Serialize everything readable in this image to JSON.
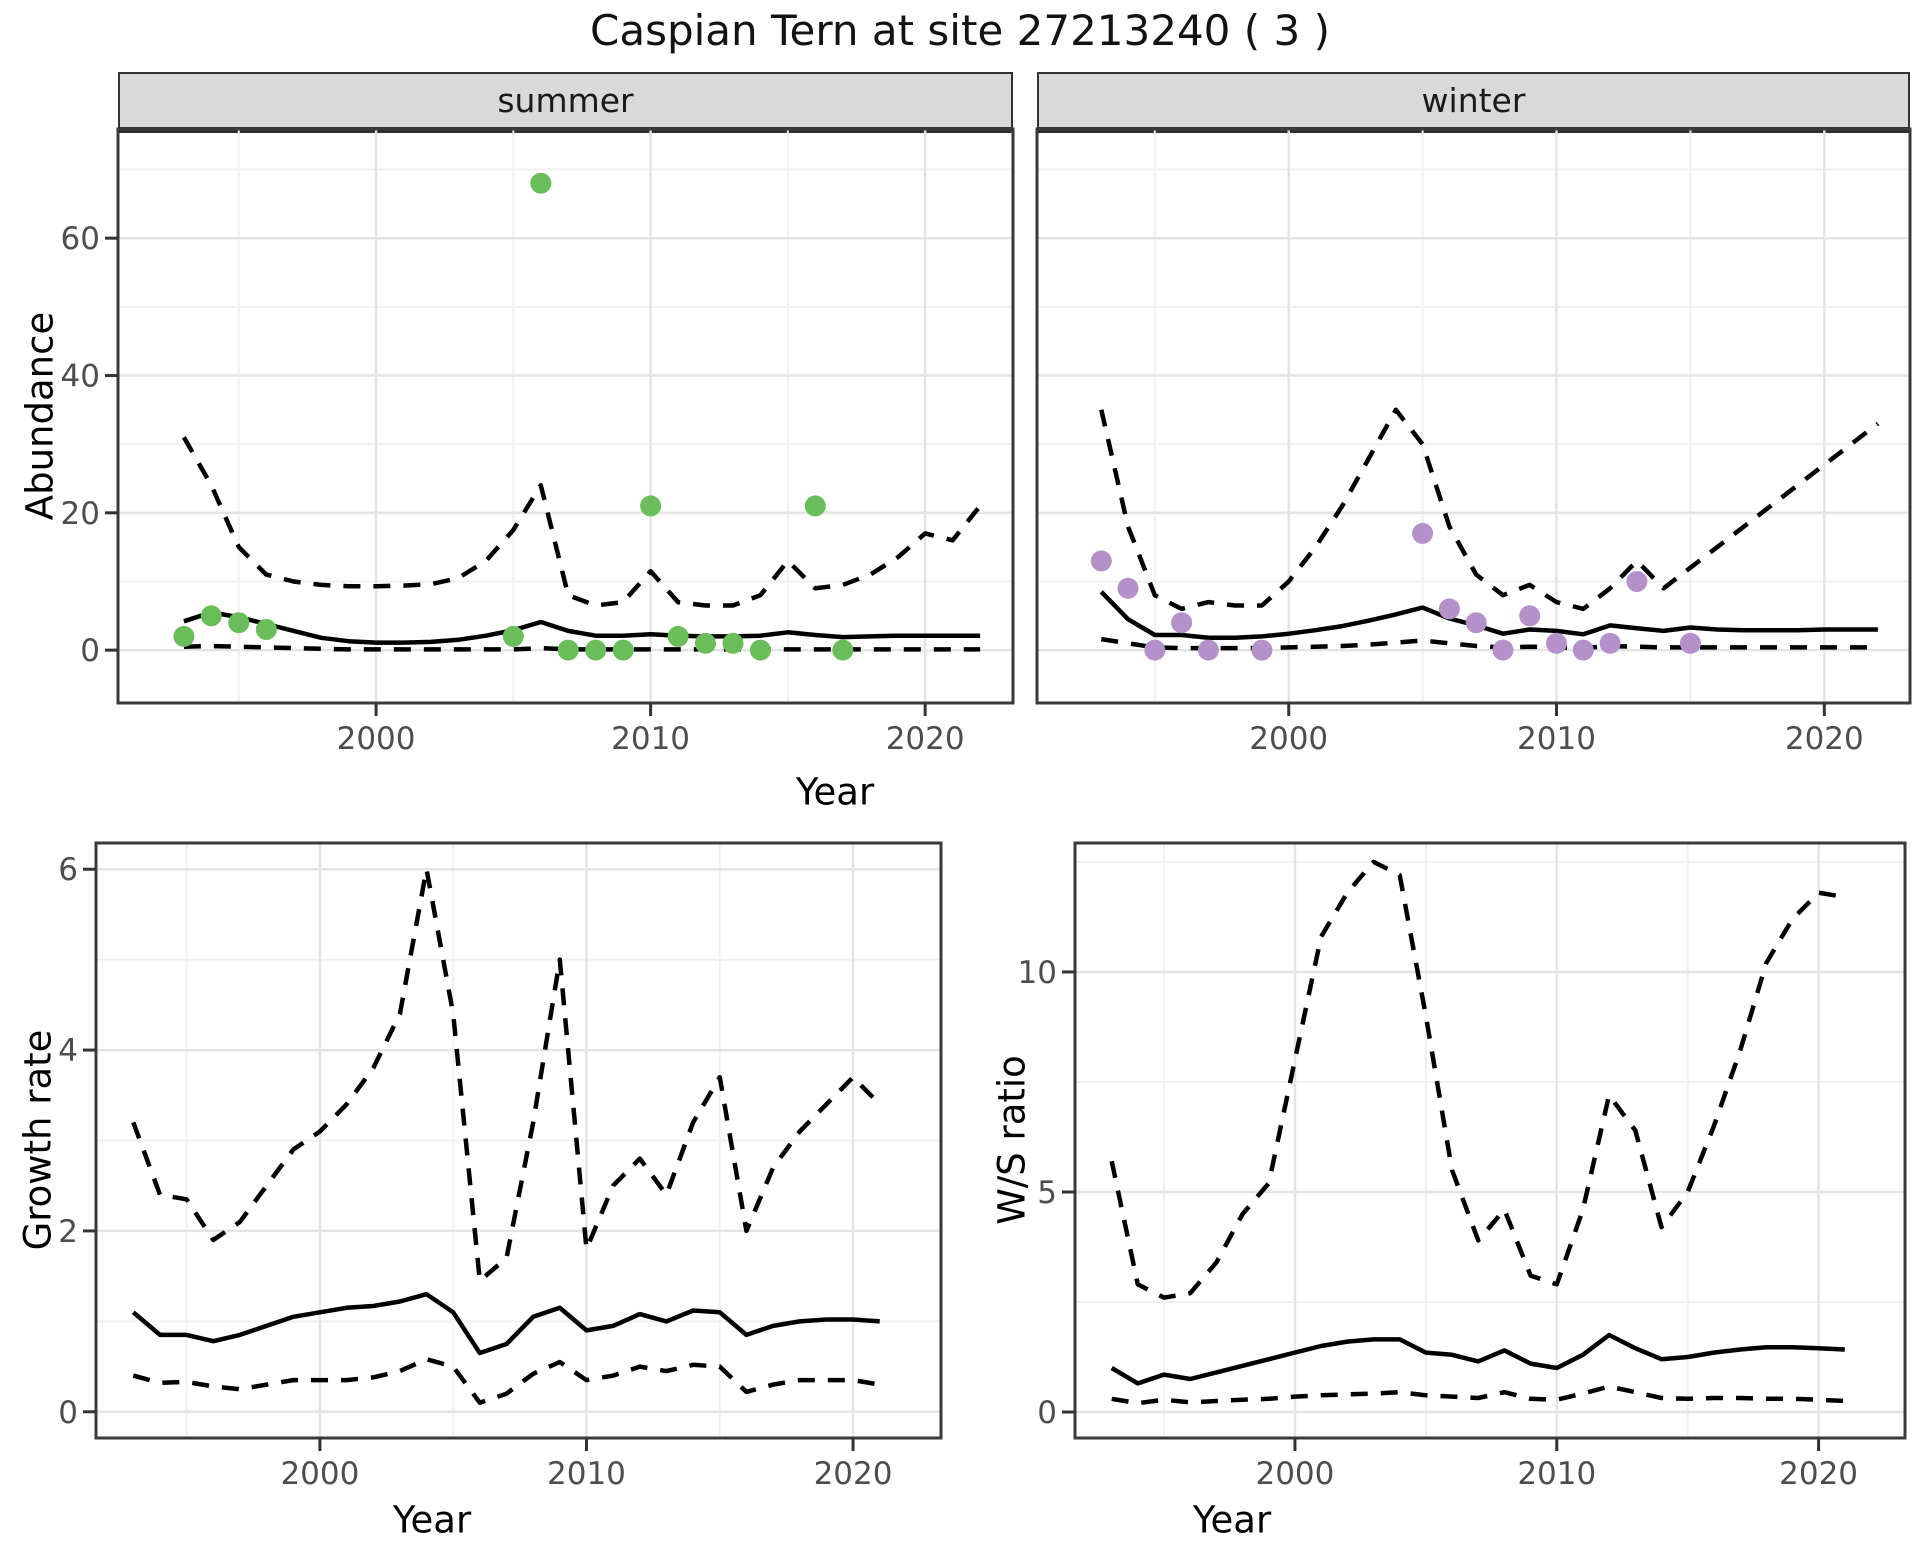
{
  "title": "Caspian Tern at site 27213240 ( 3 )",
  "colors": {
    "summer_point": "#6abd5a",
    "winter_point": "#b491c8",
    "line": "#000000",
    "strip_bg": "#d9d9d9",
    "panel_border": "#3a3a3a",
    "grid_major": "#e4e4e4",
    "grid_minor": "#f0f0f0",
    "tick_text": "#4d4d4d"
  },
  "chart_data": [
    {
      "id": "abundance_summer",
      "type": "line",
      "facet_label": "summer",
      "xlabel": "Year",
      "ylabel": "Abundance",
      "xlim": [
        1990.6,
        2023.2
      ],
      "ylim": [
        -7.7,
        75.9
      ],
      "xticks": [
        2000,
        2010,
        2020
      ],
      "yticks": [
        0,
        20,
        40,
        60
      ],
      "xminor": [
        1995,
        2005,
        2015
      ],
      "yminor": [
        10,
        30,
        50,
        70
      ],
      "grid": true,
      "show_y_axis": true,
      "x": [
        1993,
        1994,
        1995,
        1996,
        1997,
        1998,
        1999,
        2000,
        2001,
        2002,
        2003,
        2004,
        2005,
        2006,
        2007,
        2008,
        2009,
        2010,
        2011,
        2012,
        2013,
        2014,
        2015,
        2016,
        2017,
        2018,
        2019,
        2020,
        2021,
        2022
      ],
      "series": [
        {
          "name": "upper_ci",
          "style": "dashed",
          "values": [
            31,
            24,
            15,
            11,
            10,
            9.5,
            9.3,
            9.3,
            9.4,
            9.6,
            10.5,
            13,
            17.5,
            24,
            8,
            6.5,
            7,
            11.5,
            7,
            6.5,
            6.5,
            8,
            13,
            9,
            9.5,
            11,
            13.5,
            17,
            16,
            21
          ]
        },
        {
          "name": "median",
          "style": "solid",
          "values": [
            4.2,
            5.5,
            4.8,
            3.8,
            2.8,
            1.8,
            1.3,
            1.1,
            1.1,
            1.2,
            1.5,
            2.1,
            2.9,
            4.1,
            2.8,
            2.1,
            2.1,
            2.3,
            2.1,
            2,
            2,
            2.1,
            2.6,
            2.2,
            1.9,
            2,
            2.1,
            2.1,
            2.1,
            2.1
          ]
        },
        {
          "name": "lower_ci",
          "style": "dashed",
          "values": [
            0.5,
            0.6,
            0.5,
            0.4,
            0.3,
            0.2,
            0.1,
            0.1,
            0.1,
            0.1,
            0.1,
            0.1,
            0.1,
            0.3,
            0.1,
            0.1,
            0.1,
            0.1,
            0.1,
            0.1,
            0.1,
            0.1,
            0.1,
            0.1,
            0.1,
            0.1,
            0.1,
            0.1,
            0.1,
            0.1
          ]
        }
      ],
      "points": {
        "name": "observed_summer",
        "color": "#6abd5a",
        "data": [
          [
            1993,
            2
          ],
          [
            1994,
            5
          ],
          [
            1995,
            4
          ],
          [
            1996,
            3
          ],
          [
            2005,
            2
          ],
          [
            2006,
            68
          ],
          [
            2007,
            0
          ],
          [
            2008,
            0
          ],
          [
            2009,
            0
          ],
          [
            2010,
            21
          ],
          [
            2011,
            2
          ],
          [
            2012,
            1
          ],
          [
            2013,
            1
          ],
          [
            2014,
            0
          ],
          [
            2016,
            21
          ],
          [
            2017,
            0
          ]
        ]
      }
    },
    {
      "id": "abundance_winter",
      "type": "line",
      "facet_label": "winter",
      "xlabel": "Year",
      "ylabel": "Abundance",
      "xlim": [
        1990.6,
        2023.2
      ],
      "ylim": [
        -7.7,
        75.9
      ],
      "xticks": [
        2000,
        2010,
        2020
      ],
      "yticks": [
        0,
        20,
        40,
        60
      ],
      "xminor": [
        1995,
        2005,
        2015
      ],
      "yminor": [
        10,
        30,
        50,
        70
      ],
      "grid": true,
      "show_y_axis": false,
      "x": [
        1993,
        1994,
        1995,
        1996,
        1997,
        1998,
        1999,
        2000,
        2001,
        2002,
        2003,
        2004,
        2005,
        2006,
        2007,
        2008,
        2009,
        2010,
        2011,
        2012,
        2013,
        2014,
        2015,
        2016,
        2017,
        2018,
        2019,
        2020,
        2021,
        2022
      ],
      "series": [
        {
          "name": "upper_ci",
          "style": "dashed",
          "values": [
            35,
            18,
            8,
            6,
            7,
            6.5,
            6.5,
            10,
            15,
            21,
            28,
            35,
            30,
            18,
            11,
            8,
            9.5,
            7,
            6,
            9,
            13,
            9,
            12,
            15,
            18,
            21,
            24,
            27,
            30,
            33
          ]
        },
        {
          "name": "median",
          "style": "solid",
          "values": [
            8.5,
            4.5,
            2.2,
            2.2,
            1.8,
            1.8,
            2,
            2.4,
            2.9,
            3.5,
            4.3,
            5.2,
            6.2,
            4.6,
            3.6,
            2.4,
            3,
            2.8,
            2.3,
            3.6,
            3.2,
            2.8,
            3.3,
            3,
            2.9,
            2.9,
            2.9,
            3,
            3,
            3
          ]
        },
        {
          "name": "lower_ci",
          "style": "dashed",
          "values": [
            1.6,
            1,
            0.4,
            0.3,
            0.3,
            0.3,
            0.3,
            0.4,
            0.5,
            0.6,
            0.8,
            1.1,
            1.4,
            1,
            0.6,
            0.4,
            0.5,
            0.4,
            0.3,
            0.6,
            0.5,
            0.4,
            0.4,
            0.4,
            0.4,
            0.4,
            0.4,
            0.4,
            0.4,
            0.4
          ]
        }
      ],
      "points": {
        "name": "observed_winter",
        "color": "#b491c8",
        "data": [
          [
            1993,
            13
          ],
          [
            1994,
            9
          ],
          [
            1995,
            0
          ],
          [
            1996,
            4
          ],
          [
            1997,
            0
          ],
          [
            1999,
            0
          ],
          [
            2005,
            17
          ],
          [
            2006,
            6
          ],
          [
            2007,
            4
          ],
          [
            2008,
            0
          ],
          [
            2009,
            5
          ],
          [
            2010,
            1
          ],
          [
            2011,
            0
          ],
          [
            2012,
            1
          ],
          [
            2013,
            10
          ],
          [
            2015,
            1
          ]
        ]
      }
    },
    {
      "id": "growth_rate",
      "type": "line",
      "facet_label": "",
      "xlabel": "Year",
      "ylabel": "Growth rate",
      "xlim": [
        1991.6,
        2023.3
      ],
      "ylim": [
        -0.29,
        6.29
      ],
      "xticks": [
        2000,
        2010,
        2020
      ],
      "yticks": [
        0,
        2,
        4,
        6
      ],
      "xminor": [
        1995,
        2005,
        2015
      ],
      "yminor": [
        1,
        3,
        5
      ],
      "grid": true,
      "show_y_axis": true,
      "x": [
        1993,
        1994,
        1995,
        1996,
        1997,
        1998,
        1999,
        2000,
        2001,
        2002,
        2003,
        2004,
        2005,
        2006,
        2007,
        2008,
        2009,
        2010,
        2011,
        2012,
        2013,
        2014,
        2015,
        2016,
        2017,
        2018,
        2019,
        2020,
        2021
      ],
      "series": [
        {
          "name": "upper_ci",
          "style": "dashed",
          "values": [
            3.2,
            2.4,
            2.35,
            1.9,
            2.1,
            2.5,
            2.9,
            3.1,
            3.4,
            3.8,
            4.4,
            6,
            4.4,
            1.45,
            1.7,
            3.2,
            5,
            1.8,
            2.5,
            2.8,
            2.4,
            3.2,
            3.7,
            2,
            2.7,
            3.1,
            3.4,
            3.7,
            3.4
          ]
        },
        {
          "name": "median",
          "style": "solid",
          "values": [
            1.1,
            0.85,
            0.85,
            0.78,
            0.85,
            0.95,
            1.05,
            1.1,
            1.15,
            1.17,
            1.22,
            1.3,
            1.1,
            0.65,
            0.75,
            1.05,
            1.15,
            0.9,
            0.95,
            1.08,
            1,
            1.12,
            1.1,
            0.85,
            0.95,
            1,
            1.02,
            1.02,
            1
          ]
        },
        {
          "name": "lower_ci",
          "style": "dashed",
          "values": [
            0.4,
            0.32,
            0.33,
            0.28,
            0.25,
            0.3,
            0.35,
            0.35,
            0.35,
            0.38,
            0.45,
            0.58,
            0.5,
            0.1,
            0.2,
            0.42,
            0.55,
            0.35,
            0.4,
            0.5,
            0.45,
            0.52,
            0.5,
            0.22,
            0.3,
            0.35,
            0.35,
            0.35,
            0.3
          ]
        }
      ],
      "points": null
    },
    {
      "id": "ws_ratio",
      "type": "line",
      "facet_label": "",
      "xlabel": "Year",
      "ylabel": "W/S ratio",
      "xlim": [
        1991.6,
        2023.3
      ],
      "ylim": [
        -0.59,
        12.93
      ],
      "xticks": [
        2000,
        2010,
        2020
      ],
      "yticks": [
        0,
        5,
        10
      ],
      "xminor": [
        1995,
        2005,
        2015
      ],
      "yminor": [
        2.5,
        7.5,
        12.5
      ],
      "grid": true,
      "show_y_axis": true,
      "x": [
        1993,
        1994,
        1995,
        1996,
        1997,
        1998,
        1999,
        2000,
        2001,
        2002,
        2003,
        2004,
        2005,
        2006,
        2007,
        2008,
        2009,
        2010,
        2011,
        2012,
        2013,
        2014,
        2015,
        2016,
        2017,
        2018,
        2019,
        2020,
        2021
      ],
      "series": [
        {
          "name": "upper_ci",
          "style": "dashed",
          "values": [
            5.7,
            2.9,
            2.6,
            2.7,
            3.4,
            4.5,
            5.2,
            8,
            10.8,
            11.8,
            12.5,
            12.2,
            9,
            5.5,
            3.9,
            4.6,
            3.1,
            2.9,
            4.6,
            7.2,
            6.4,
            4.2,
            5,
            6.5,
            8.2,
            10.2,
            11.2,
            11.8,
            11.7
          ]
        },
        {
          "name": "median",
          "style": "solid",
          "values": [
            1,
            0.65,
            0.85,
            0.75,
            0.9,
            1.05,
            1.2,
            1.35,
            1.5,
            1.6,
            1.65,
            1.65,
            1.35,
            1.3,
            1.15,
            1.4,
            1.1,
            1,
            1.3,
            1.75,
            1.45,
            1.2,
            1.25,
            1.35,
            1.42,
            1.47,
            1.47,
            1.45,
            1.42
          ]
        },
        {
          "name": "lower_ci",
          "style": "dashed",
          "values": [
            0.3,
            0.2,
            0.28,
            0.22,
            0.25,
            0.28,
            0.3,
            0.35,
            0.38,
            0.4,
            0.42,
            0.45,
            0.38,
            0.35,
            0.32,
            0.45,
            0.3,
            0.28,
            0.42,
            0.58,
            0.45,
            0.32,
            0.3,
            0.32,
            0.32,
            0.3,
            0.3,
            0.28,
            0.25
          ]
        }
      ],
      "points": null
    }
  ]
}
